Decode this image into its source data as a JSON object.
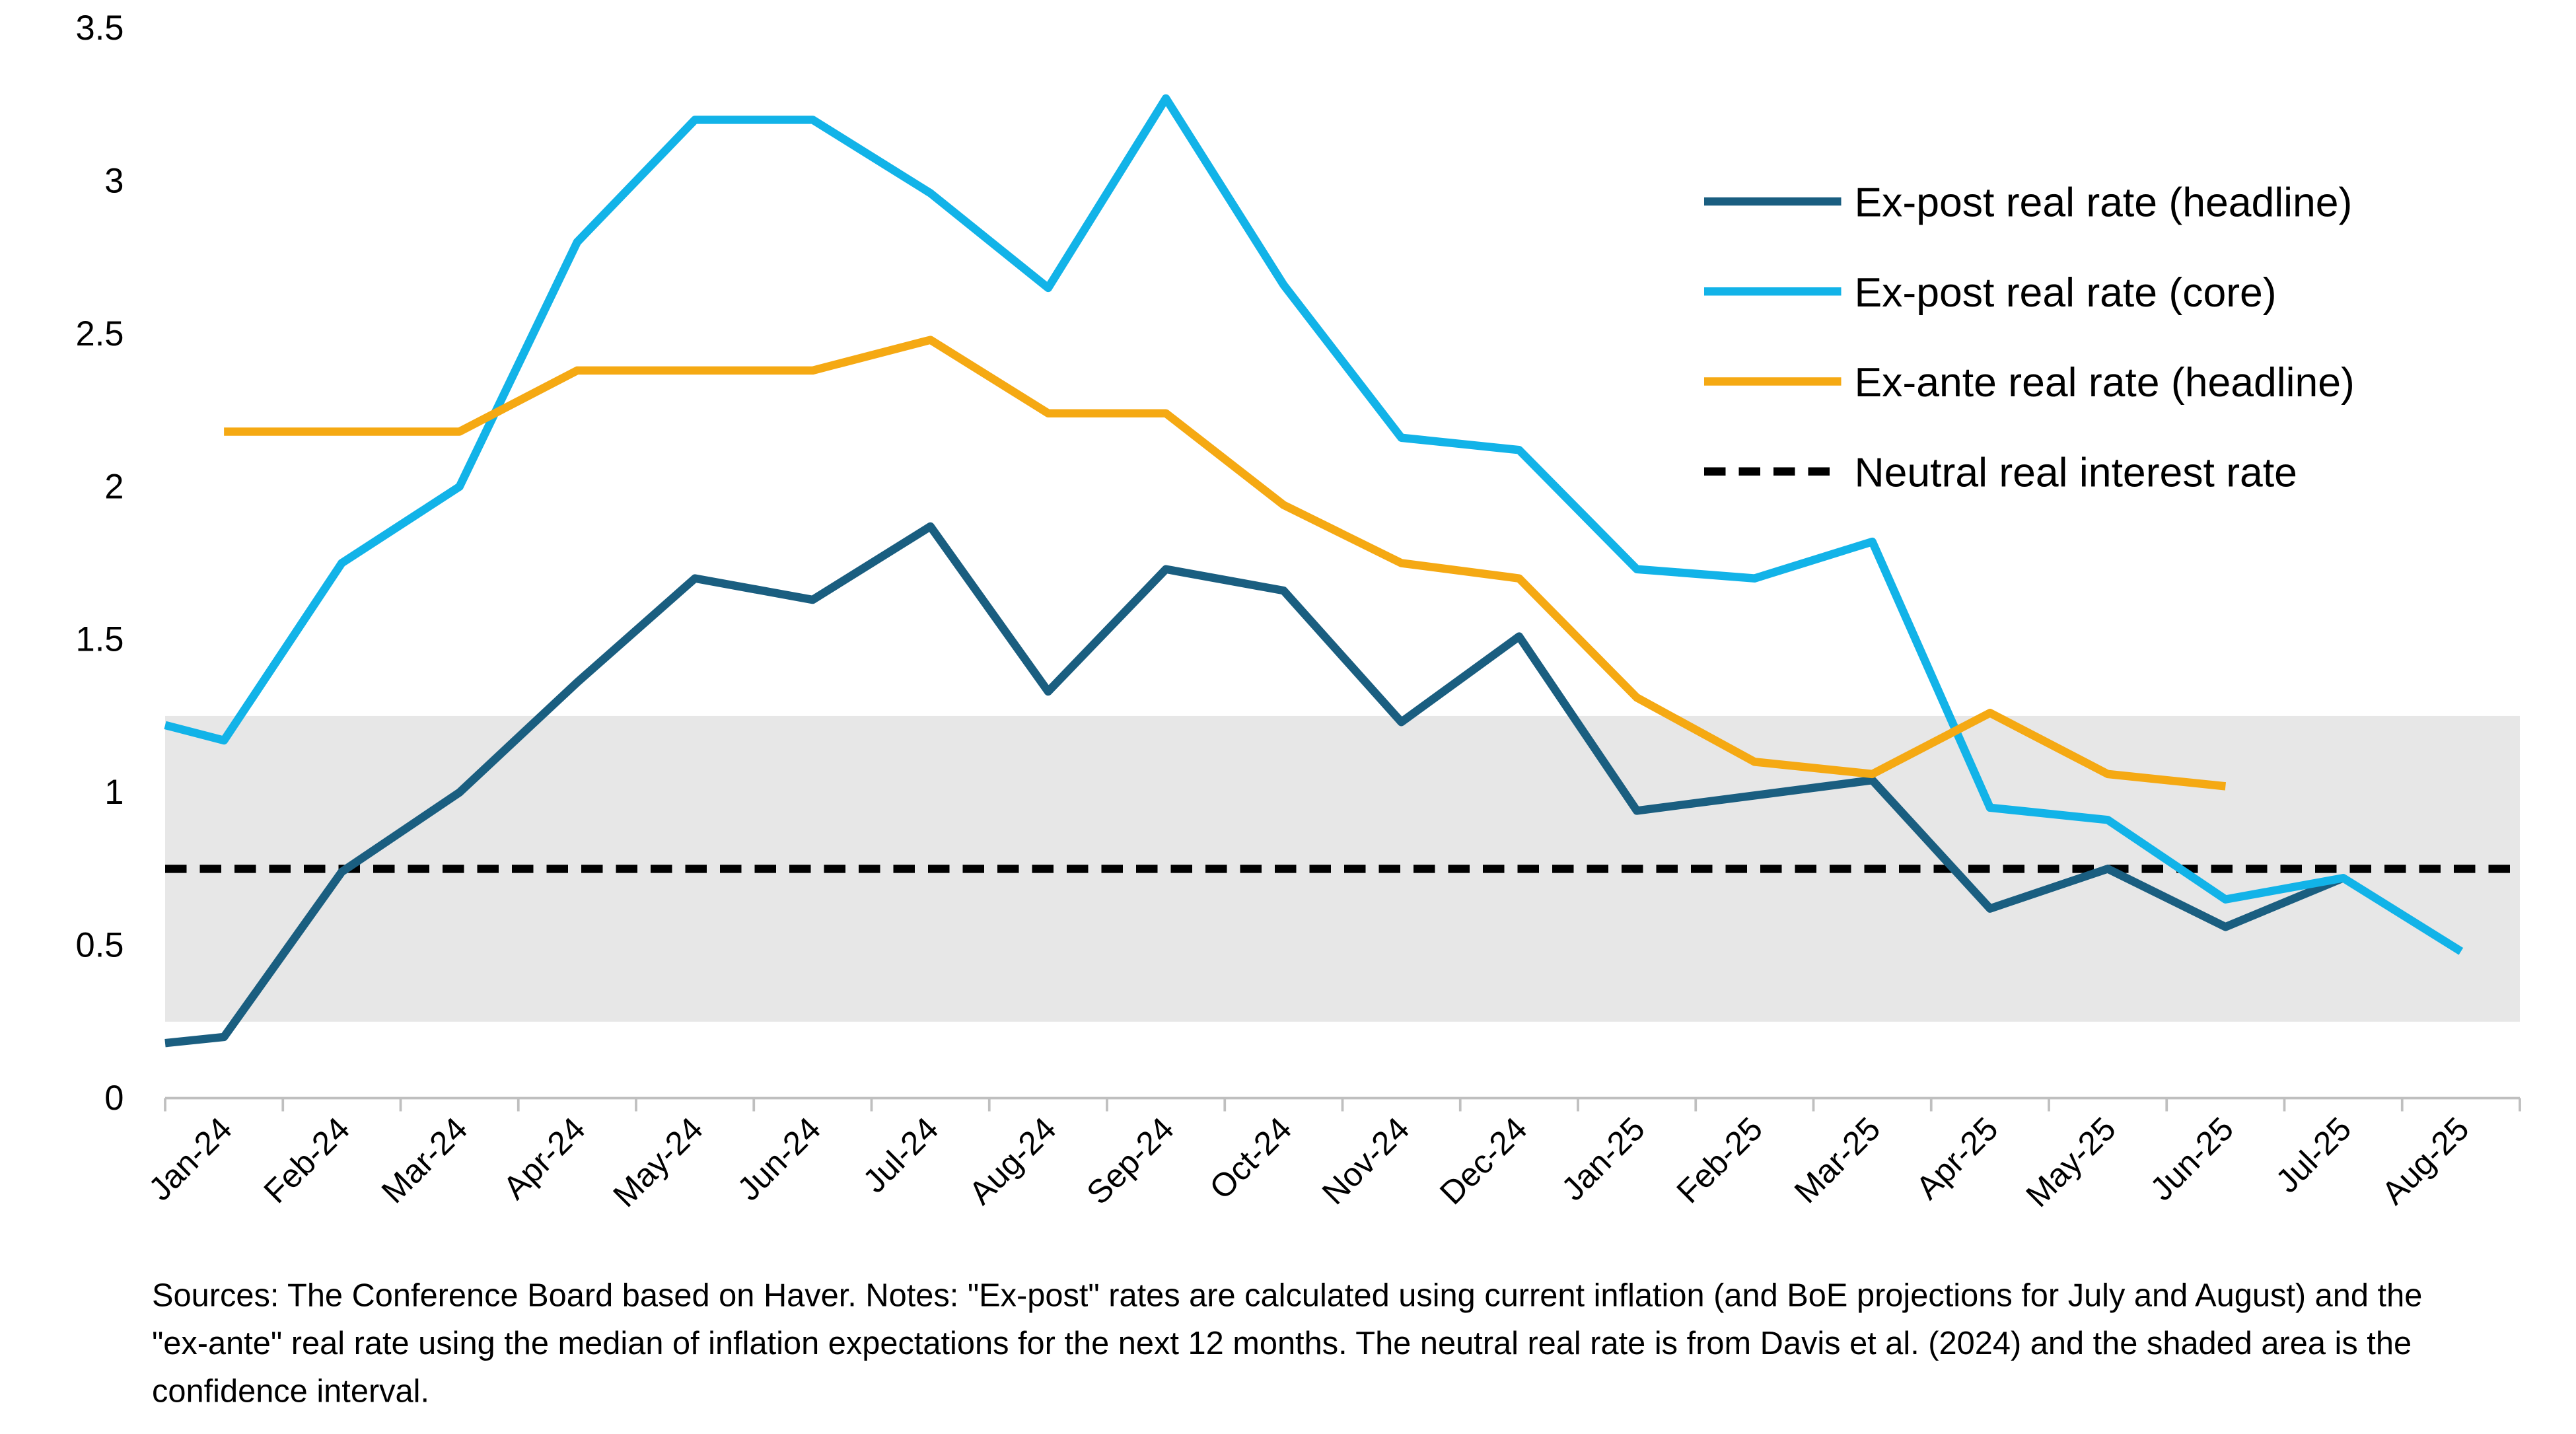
{
  "chart_data": {
    "type": "line",
    "categories": [
      null,
      "Jan-24",
      "Feb-24",
      "Mar-24",
      "Apr-24",
      "May-24",
      "Jun-24",
      "Jul-24",
      "Aug-24",
      "Sep-24",
      "Oct-24",
      "Nov-24",
      "Dec-24",
      "Jan-25",
      "Feb-25",
      "Mar-25",
      "Apr-25",
      "May-25",
      "Jun-25",
      "Jul-25",
      "Aug-25"
    ],
    "series": [
      {
        "name": "Ex-post real rate (headline)",
        "color": "#1a5e80",
        "values": [
          0.18,
          0.2,
          0.74,
          1.0,
          1.36,
          1.7,
          1.63,
          1.87,
          1.33,
          1.73,
          1.66,
          1.23,
          1.51,
          0.94,
          0.99,
          1.04,
          0.62,
          0.75,
          0.56,
          0.72,
          null
        ]
      },
      {
        "name": "Ex-post real rate (core)",
        "color": "#12b3e8",
        "values": [
          1.22,
          1.17,
          1.75,
          2.0,
          2.8,
          3.2,
          3.2,
          2.96,
          2.65,
          3.27,
          2.66,
          2.16,
          2.12,
          1.73,
          1.7,
          1.82,
          0.95,
          0.91,
          0.65,
          0.72,
          0.48
        ]
      },
      {
        "name": "Ex-ante real rate (headline)",
        "color": "#f5a913",
        "values": [
          null,
          2.18,
          2.18,
          2.18,
          2.38,
          2.38,
          2.38,
          2.48,
          2.24,
          2.24,
          1.94,
          1.75,
          1.7,
          1.31,
          1.1,
          1.06,
          1.26,
          1.06,
          1.02,
          null,
          null
        ]
      }
    ],
    "reference_line": {
      "name": "Neutral real interest rate",
      "value": 0.75,
      "color": "#000000"
    },
    "shaded_band": [
      0.25,
      1.25
    ],
    "shaded_color": "#e7e7e7",
    "ylim": [
      0,
      3.5
    ],
    "yticks": [
      0,
      0.5,
      1,
      1.5,
      2,
      2.5,
      3,
      3.5
    ],
    "legend": "upper right",
    "note": "Sources: The Conference Board based on Haver. Notes: \"Ex-post\" rates are calculated using current inflation (and BoE projections for July and August) and the \"ex-ante\" real rate using the median of inflation expectations for the next 12 months. The neutral real rate is from Davis et al. (2024) and the shaded area is the confidence interval."
  }
}
